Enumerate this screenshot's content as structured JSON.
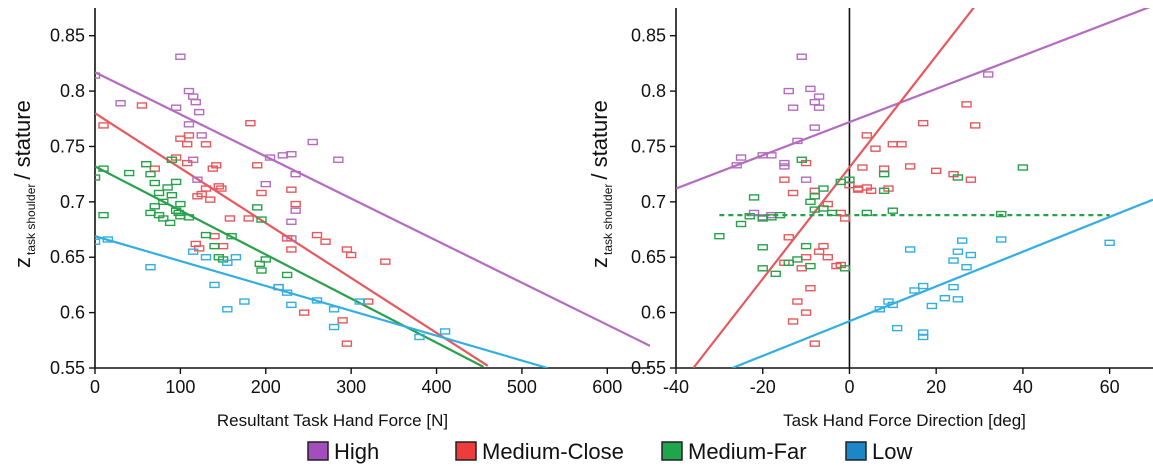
{
  "colors": {
    "High": "#b46cc0",
    "Medium-Close": "#e8585c",
    "Medium-Far": "#27a24a",
    "Low": "#33aee0"
  },
  "legend": {
    "items": [
      {
        "label": "High",
        "key": "High",
        "swatch": "#a24fbd"
      },
      {
        "label": "Medium-Close",
        "key": "Medium-Close",
        "swatch": "#ee3b3b"
      },
      {
        "label": "Medium-Far",
        "key": "Medium-Far",
        "swatch": "#1fa64c"
      },
      {
        "label": "Low",
        "key": "Low",
        "swatch": "#1c86c6"
      }
    ]
  },
  "chart_data": [
    {
      "type": "scatter",
      "xlabel": "Resultant Task Hand Force [N]",
      "ylabel_main": "z",
      "ylabel_sub": "task shoulder",
      "ylabel_rest": "/ stature",
      "xlim": [
        0,
        650
      ],
      "ylim": [
        0.55,
        0.875
      ],
      "xticks": [
        0,
        100,
        200,
        300,
        400,
        500,
        600
      ],
      "yticks": [
        0.55,
        0.6,
        0.65,
        0.7,
        0.75,
        0.8,
        0.85
      ],
      "ytick_labels": [
        "0.55",
        "0.6",
        "0.65",
        "0.7",
        "0.75",
        "0.8",
        "0.85"
      ],
      "series": [
        {
          "key": "High",
          "points": [
            [
              0,
              0.814
            ],
            [
              30,
              0.789
            ],
            [
              100,
              0.831
            ],
            [
              110,
              0.8
            ],
            [
              115,
              0.795
            ],
            [
              118,
              0.79
            ],
            [
              95,
              0.785
            ],
            [
              122,
              0.781
            ],
            [
              110,
              0.77
            ],
            [
              125,
              0.76
            ],
            [
              115,
              0.738
            ],
            [
              120,
              0.72
            ],
            [
              220,
              0.742
            ],
            [
              230,
              0.743
            ],
            [
              205,
              0.74
            ],
            [
              255,
              0.754
            ],
            [
              285,
              0.738
            ],
            [
              235,
              0.725
            ],
            [
              200,
              0.716
            ],
            [
              235,
              0.692
            ],
            [
              230,
              0.682
            ],
            [
              230,
              0.667
            ]
          ],
          "fit": [
            [
              0,
              0.817
            ],
            [
              650,
              0.57
            ]
          ]
        },
        {
          "key": "Medium-Close",
          "points": [
            [
              10,
              0.769
            ],
            [
              55,
              0.787
            ],
            [
              70,
              0.73
            ],
            [
              100,
              0.757
            ],
            [
              108,
              0.752
            ],
            [
              108,
              0.735
            ],
            [
              110,
              0.76
            ],
            [
              130,
              0.752
            ],
            [
              138,
              0.73
            ],
            [
              142,
              0.733
            ],
            [
              145,
              0.714
            ],
            [
              130,
              0.712
            ],
            [
              125,
              0.707
            ],
            [
              120,
              0.705
            ],
            [
              135,
              0.702
            ],
            [
              148,
              0.712
            ],
            [
              158,
              0.685
            ],
            [
              180,
              0.685
            ],
            [
              182,
              0.771
            ],
            [
              190,
              0.733
            ],
            [
              195,
              0.708
            ],
            [
              230,
              0.711
            ],
            [
              235,
              0.698
            ],
            [
              225,
              0.667
            ],
            [
              230,
              0.657
            ],
            [
              260,
              0.67
            ],
            [
              270,
              0.664
            ],
            [
              295,
              0.657
            ],
            [
              300,
              0.652
            ],
            [
              340,
              0.646
            ],
            [
              320,
              0.61
            ],
            [
              290,
              0.593
            ],
            [
              295,
              0.572
            ],
            [
              245,
              0.6
            ],
            [
              215,
              0.623
            ],
            [
              150,
              0.66
            ],
            [
              140,
              0.669
            ],
            [
              118,
              0.662
            ],
            [
              122,
              0.658
            ],
            [
              95,
              0.74
            ]
          ],
          "fit": [
            [
              0,
              0.78
            ],
            [
              460,
              0.552
            ]
          ]
        },
        {
          "key": "Medium-Far",
          "points": [
            [
              0,
              0.722
            ],
            [
              10,
              0.73
            ],
            [
              10,
              0.688
            ],
            [
              40,
              0.726
            ],
            [
              60,
              0.734
            ],
            [
              65,
              0.725
            ],
            [
              70,
              0.717
            ],
            [
              75,
              0.708
            ],
            [
              80,
              0.7
            ],
            [
              85,
              0.713
            ],
            [
              90,
              0.706
            ],
            [
              95,
              0.718
            ],
            [
              100,
              0.698
            ],
            [
              70,
              0.696
            ],
            [
              65,
              0.69
            ],
            [
              75,
              0.688
            ],
            [
              80,
              0.685
            ],
            [
              88,
              0.681
            ],
            [
              95,
              0.692
            ],
            [
              100,
              0.687
            ],
            [
              110,
              0.686
            ],
            [
              90,
              0.738
            ],
            [
              98,
              0.69
            ],
            [
              130,
              0.67
            ],
            [
              140,
              0.66
            ],
            [
              145,
              0.65
            ],
            [
              160,
              0.669
            ],
            [
              190,
              0.695
            ],
            [
              195,
              0.684
            ],
            [
              200,
              0.648
            ],
            [
              195,
              0.638
            ],
            [
              193,
              0.644
            ],
            [
              225,
              0.634
            ],
            [
              150,
              0.648
            ]
          ],
          "fit": [
            [
              0,
              0.732
            ],
            [
              455,
              0.551
            ]
          ]
        },
        {
          "key": "Low",
          "points": [
            [
              0,
              0.664
            ],
            [
              15,
              0.666
            ],
            [
              65,
              0.641
            ],
            [
              115,
              0.655
            ],
            [
              130,
              0.65
            ],
            [
              140,
              0.625
            ],
            [
              155,
              0.603
            ],
            [
              165,
              0.65
            ],
            [
              155,
              0.645
            ],
            [
              175,
              0.61
            ],
            [
              215,
              0.623
            ],
            [
              225,
              0.618
            ],
            [
              230,
              0.607
            ],
            [
              260,
              0.611
            ],
            [
              280,
              0.603
            ],
            [
              280,
              0.587
            ],
            [
              310,
              0.61
            ],
            [
              380,
              0.578
            ],
            [
              410,
              0.583
            ]
          ],
          "fit": [
            [
              0,
              0.669
            ],
            [
              530,
              0.55
            ]
          ]
        }
      ]
    },
    {
      "type": "scatter",
      "xlabel": "Task Hand Force Direction [deg]",
      "ylabel_main": "z",
      "ylabel_sub": "task shoulder",
      "ylabel_rest": "/ stature",
      "xlim": [
        -40,
        70
      ],
      "ylim": [
        0.55,
        0.875
      ],
      "xticks": [
        -40,
        -20,
        0,
        20,
        40,
        60
      ],
      "yticks": [
        0.55,
        0.6,
        0.65,
        0.7,
        0.75,
        0.8,
        0.85
      ],
      "ytick_labels": [
        "0.55",
        "0.6",
        "0.65",
        "0.7",
        "0.75",
        "0.8",
        "0.85"
      ],
      "zero_line": 0,
      "series": [
        {
          "key": "High",
          "points": [
            [
              -25,
              0.74
            ],
            [
              -26,
              0.733
            ],
            [
              -20,
              0.742
            ],
            [
              -18,
              0.742
            ],
            [
              -15,
              0.735
            ],
            [
              -15,
              0.732
            ],
            [
              -14,
              0.8
            ],
            [
              -13,
              0.785
            ],
            [
              -12,
              0.755
            ],
            [
              -11,
              0.831
            ],
            [
              -9,
              0.802
            ],
            [
              -8,
              0.79
            ],
            [
              -7,
              0.795
            ],
            [
              -7,
              0.785
            ],
            [
              -8,
              0.767
            ],
            [
              -22,
              0.69
            ],
            [
              -20,
              0.686
            ],
            [
              -18,
              0.688
            ],
            [
              -10,
              0.72
            ],
            [
              32,
              0.815
            ]
          ],
          "fit": [
            [
              -40,
              0.712
            ],
            [
              70,
              0.877
            ]
          ]
        },
        {
          "key": "Medium-Close",
          "points": [
            [
              -15,
              0.72
            ],
            [
              -13,
              0.708
            ],
            [
              -10,
              0.735
            ],
            [
              -8,
              0.71
            ],
            [
              -5,
              0.698
            ],
            [
              -2,
              0.69
            ],
            [
              -1,
              0.685
            ],
            [
              0,
              0.715
            ],
            [
              2,
              0.711
            ],
            [
              3,
              0.731
            ],
            [
              4,
              0.76
            ],
            [
              5,
              0.71
            ],
            [
              6,
              0.748
            ],
            [
              8,
              0.73
            ],
            [
              10,
              0.752
            ],
            [
              12,
              0.752
            ],
            [
              14,
              0.732
            ],
            [
              17,
              0.771
            ],
            [
              20,
              0.728
            ],
            [
              24,
              0.725
            ],
            [
              27,
              0.788
            ],
            [
              28,
              0.72
            ],
            [
              29,
              0.769
            ],
            [
              -3,
              0.642
            ],
            [
              -10,
              0.65
            ],
            [
              -11,
              0.64
            ],
            [
              -9,
              0.622
            ],
            [
              -12,
              0.61
            ],
            [
              -13,
              0.592
            ],
            [
              -8,
              0.572
            ],
            [
              -10,
              0.6
            ],
            [
              -14,
              0.668
            ],
            [
              -15,
              0.645
            ],
            [
              -5,
              0.65
            ],
            [
              -6,
              0.66
            ],
            [
              2,
              0.712
            ],
            [
              4,
              0.713
            ],
            [
              -2,
              0.643
            ],
            [
              -7,
              0.655
            ],
            [
              9,
              0.712
            ]
          ],
          "fit": [
            [
              -36,
              0.55
            ],
            [
              29,
              0.877
            ]
          ]
        },
        {
          "key": "Medium-Far",
          "points": [
            [
              -30,
              0.669
            ],
            [
              -25,
              0.68
            ],
            [
              -23,
              0.687
            ],
            [
              -22,
              0.704
            ],
            [
              -20,
              0.685
            ],
            [
              -18,
              0.686
            ],
            [
              -16,
              0.688
            ],
            [
              -20,
              0.64
            ],
            [
              -17,
              0.635
            ],
            [
              -14,
              0.645
            ],
            [
              -12,
              0.648
            ],
            [
              -10,
              0.66
            ],
            [
              -9,
              0.7
            ],
            [
              -8,
              0.705
            ],
            [
              -6,
              0.712
            ],
            [
              -11,
              0.738
            ],
            [
              -8,
              0.693
            ],
            [
              -6,
              0.694
            ],
            [
              -4,
              0.69
            ],
            [
              -2,
              0.718
            ],
            [
              0,
              0.72
            ],
            [
              -1,
              0.64
            ],
            [
              -9,
              0.642
            ],
            [
              4,
              0.69
            ],
            [
              8,
              0.71
            ],
            [
              8,
              0.725
            ],
            [
              25,
              0.722
            ],
            [
              35,
              0.689
            ],
            [
              40,
              0.731
            ],
            [
              10,
              0.692
            ],
            [
              -20,
              0.659
            ]
          ],
          "fit": [
            [
              -30,
              0.688
            ],
            [
              60,
              0.688
            ]
          ],
          "dashed": true
        },
        {
          "key": "Low",
          "points": [
            [
              7,
              0.603
            ],
            [
              9,
              0.61
            ],
            [
              10,
              0.607
            ],
            [
              11,
              0.586
            ],
            [
              14,
              0.657
            ],
            [
              15,
              0.62
            ],
            [
              17,
              0.624
            ],
            [
              17,
              0.582
            ],
            [
              17,
              0.578
            ],
            [
              19,
              0.606
            ],
            [
              22,
              0.613
            ],
            [
              24,
              0.647
            ],
            [
              24,
              0.623
            ],
            [
              25,
              0.655
            ],
            [
              25,
              0.612
            ],
            [
              26,
              0.665
            ],
            [
              27,
              0.641
            ],
            [
              28,
              0.652
            ],
            [
              35,
              0.666
            ],
            [
              60,
              0.663
            ]
          ],
          "fit": [
            [
              -27,
              0.55
            ],
            [
              70,
              0.702
            ]
          ]
        }
      ]
    }
  ]
}
